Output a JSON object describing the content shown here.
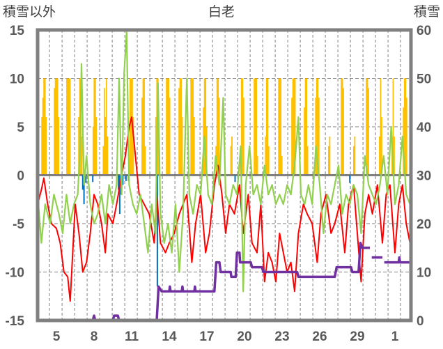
{
  "chart_data": {
    "type": "line",
    "title": "白老",
    "left_axis_title": "積雪以外",
    "right_axis_title": "積雪",
    "ylim_left": [
      -15,
      15
    ],
    "ylim_right": [
      0,
      60
    ],
    "xlim_day": [
      3.5,
      33.3
    ],
    "left_ticks": [
      "15",
      "10",
      "5",
      "0",
      "-5",
      "-10",
      "-15"
    ],
    "left_tick_values": [
      15,
      10,
      5,
      0,
      -5,
      -10,
      -15
    ],
    "right_ticks": [
      "60",
      "50",
      "40",
      "30",
      "20",
      "10",
      "0"
    ],
    "right_tick_values": [
      60,
      50,
      40,
      30,
      20,
      10,
      0
    ],
    "x_ticks": [
      "5",
      "8",
      "11",
      "14",
      "17",
      "20",
      "23",
      "26",
      "29",
      "1"
    ],
    "x_tick_days": [
      5,
      8,
      11,
      14,
      17,
      20,
      23,
      26,
      29,
      32
    ],
    "grid": true,
    "colors": {
      "sunshine": "#FFC000",
      "precip": "#0070C0",
      "temperature": "#FF0000",
      "green_series": "#92D050",
      "snow_depth": "#7030A0",
      "frame": "#808080"
    },
    "sunshine_bars": [
      [
        4.0,
        [
          6,
          8,
          10,
          10,
          6
        ]
      ],
      [
        5.0,
        [
          9,
          10,
          10,
          10,
          6
        ]
      ],
      [
        5.95,
        [
          10,
          10,
          10,
          10
        ]
      ],
      [
        6.9,
        [
          6,
          10,
          10,
          4
        ]
      ],
      [
        8.05,
        [
          5,
          10,
          10,
          6
        ]
      ],
      [
        8.9,
        [
          3,
          9,
          6,
          10,
          4
        ]
      ],
      [
        11.0,
        [
          10,
          10,
          10,
          6
        ]
      ],
      [
        11.95,
        [
          8,
          10,
          10,
          3
        ]
      ],
      [
        13.05,
        [
          6,
          10,
          10,
          4
        ]
      ],
      [
        13.9,
        [
          10,
          10,
          10,
          8
        ]
      ],
      [
        14.9,
        [
          9,
          10,
          10,
          6
        ]
      ],
      [
        15.85,
        [
          10,
          10,
          10,
          6
        ]
      ],
      [
        16.85,
        [
          7,
          10,
          10,
          5
        ]
      ],
      [
        17.85,
        [
          3,
          10,
          10,
          8
        ]
      ],
      [
        18.95,
        [
          3,
          4
        ]
      ],
      [
        19.8,
        [
          3,
          10,
          10,
          8
        ]
      ],
      [
        20.9,
        [
          10,
          10,
          10,
          2
        ]
      ],
      [
        21.8,
        [
          4,
          10,
          10,
          3
        ]
      ],
      [
        22.85,
        [
          10,
          10,
          10,
          2
        ]
      ],
      [
        23.9,
        [
          8,
          10,
          10,
          10
        ]
      ],
      [
        24.9,
        [
          7,
          10,
          10,
          3
        ]
      ],
      [
        25.8,
        [
          8,
          10,
          10,
          8
        ]
      ],
      [
        26.75,
        [
          3,
          4
        ]
      ],
      [
        27.8,
        [
          10,
          10,
          9
        ]
      ],
      [
        28.75,
        [
          3,
          4
        ]
      ],
      [
        29.8,
        [
          10,
          10,
          9
        ]
      ],
      [
        30.85,
        [
          4,
          10,
          6
        ]
      ],
      [
        31.85,
        [
          3,
          10,
          4
        ]
      ],
      [
        32.8,
        [
          7,
          10,
          10,
          8
        ]
      ]
    ],
    "precip_bars": [
      [
        7.1,
        -1.5
      ],
      [
        7.2,
        -3
      ],
      [
        7.35,
        -0.8
      ],
      [
        7.9,
        -0.7
      ],
      [
        9.95,
        -1.5
      ],
      [
        10.05,
        -4
      ],
      [
        10.15,
        -2
      ],
      [
        10.3,
        -1
      ],
      [
        10.55,
        -0.6
      ],
      [
        10.75,
        -0.6
      ],
      [
        13.05,
        -11.5
      ],
      [
        19.25,
        -0.7
      ],
      [
        28.4,
        -0.8
      ]
    ],
    "temperature": [
      [
        3.5,
        -3
      ],
      [
        3.8,
        -1.5
      ],
      [
        4.0,
        -0.3
      ],
      [
        4.3,
        -3
      ],
      [
        4.6,
        -5
      ],
      [
        5.0,
        -5.5
      ],
      [
        5.3,
        -7
      ],
      [
        5.6,
        -10
      ],
      [
        5.9,
        -10.5
      ],
      [
        6.1,
        -13
      ],
      [
        6.3,
        -8
      ],
      [
        6.5,
        -3
      ],
      [
        6.8,
        -6
      ],
      [
        7.1,
        -10
      ],
      [
        7.4,
        -9
      ],
      [
        7.7,
        -6
      ],
      [
        8.0,
        -2
      ],
      [
        8.3,
        -3
      ],
      [
        8.6,
        -5
      ],
      [
        8.9,
        -8
      ],
      [
        9.1,
        -4
      ],
      [
        9.5,
        -5
      ],
      [
        9.8,
        -3
      ],
      [
        10.2,
        0
      ],
      [
        10.5,
        2
      ],
      [
        10.8,
        5
      ],
      [
        11.0,
        6
      ],
      [
        11.3,
        2
      ],
      [
        11.6,
        -2
      ],
      [
        12.0,
        -3
      ],
      [
        12.4,
        -4
      ],
      [
        12.8,
        -7
      ],
      [
        13.0,
        -2
      ],
      [
        13.3,
        -7
      ],
      [
        13.7,
        -8
      ],
      [
        14.0,
        -7
      ],
      [
        14.4,
        -6
      ],
      [
        14.8,
        -4
      ],
      [
        15.1,
        -3
      ],
      [
        15.4,
        -2
      ],
      [
        15.8,
        -9
      ],
      [
        16.1,
        -5
      ],
      [
        16.5,
        -2
      ],
      [
        16.9,
        -8
      ],
      [
        17.2,
        -6
      ],
      [
        17.6,
        -1
      ],
      [
        17.9,
        1
      ],
      [
        18.2,
        -2
      ],
      [
        18.5,
        -6
      ],
      [
        18.8,
        -3
      ],
      [
        19.2,
        -4
      ],
      [
        19.6,
        -1
      ],
      [
        19.9,
        -6
      ],
      [
        20.3,
        -2
      ],
      [
        20.6,
        -7
      ],
      [
        21.0,
        -8
      ],
      [
        21.3,
        -3
      ],
      [
        21.6,
        -11
      ],
      [
        21.9,
        -8
      ],
      [
        22.2,
        -9
      ],
      [
        22.5,
        -11
      ],
      [
        22.8,
        -6
      ],
      [
        23.1,
        -8
      ],
      [
        23.4,
        -10
      ],
      [
        23.7,
        -9
      ],
      [
        24.0,
        -12
      ],
      [
        24.3,
        -6
      ],
      [
        24.7,
        -3
      ],
      [
        25.0,
        -4
      ],
      [
        25.4,
        -5
      ],
      [
        25.8,
        -9
      ],
      [
        26.1,
        -4
      ],
      [
        26.5,
        -2
      ],
      [
        26.9,
        -6
      ],
      [
        27.2,
        -5
      ],
      [
        27.6,
        -3
      ],
      [
        28.0,
        -8
      ],
      [
        28.3,
        -3
      ],
      [
        28.7,
        -1
      ],
      [
        29.0,
        -6
      ],
      [
        29.3,
        -11
      ],
      [
        29.6,
        -4
      ],
      [
        29.9,
        -2
      ],
      [
        30.2,
        -4
      ],
      [
        30.6,
        -1
      ],
      [
        31.0,
        -7
      ],
      [
        31.3,
        -2
      ],
      [
        31.6,
        -1
      ],
      [
        32.0,
        -8
      ],
      [
        32.3,
        -3
      ],
      [
        32.6,
        -1
      ],
      [
        32.9,
        -5
      ],
      [
        33.2,
        -7
      ]
    ],
    "green_series": [
      [
        3.5,
        -2
      ],
      [
        3.8,
        -7
      ],
      [
        4.1,
        -3
      ],
      [
        4.5,
        -5
      ],
      [
        4.8,
        -2
      ],
      [
        5.2,
        -4
      ],
      [
        5.5,
        -6
      ],
      [
        5.8,
        -2
      ],
      [
        6.1,
        -5
      ],
      [
        6.4,
        -3
      ],
      [
        6.7,
        -2
      ],
      [
        6.9,
        3
      ],
      [
        7.0,
        11.5
      ],
      [
        7.2,
        -1
      ],
      [
        7.4,
        2
      ],
      [
        7.7,
        -3
      ],
      [
        8.0,
        -5
      ],
      [
        8.3,
        -4
      ],
      [
        8.6,
        -2
      ],
      [
        8.9,
        -5
      ],
      [
        9.2,
        -1
      ],
      [
        9.5,
        -3
      ],
      [
        9.8,
        -1
      ],
      [
        10.0,
        10
      ],
      [
        10.2,
        -2
      ],
      [
        10.4,
        10.5
      ],
      [
        10.6,
        14.8
      ],
      [
        10.8,
        -1
      ],
      [
        11.1,
        -3
      ],
      [
        11.4,
        -4
      ],
      [
        11.7,
        -2
      ],
      [
        12.0,
        -5
      ],
      [
        12.3,
        -8
      ],
      [
        12.6,
        -3
      ],
      [
        12.9,
        -6
      ],
      [
        13.1,
        9.5
      ],
      [
        13.3,
        -4
      ],
      [
        13.6,
        -7
      ],
      [
        13.9,
        -5
      ],
      [
        14.2,
        -8
      ],
      [
        14.5,
        -3
      ],
      [
        14.8,
        -10
      ],
      [
        15.1,
        -4
      ],
      [
        15.4,
        10
      ],
      [
        15.6,
        -2
      ],
      [
        15.9,
        -4
      ],
      [
        16.2,
        -1
      ],
      [
        16.5,
        -2
      ],
      [
        16.8,
        4
      ],
      [
        17.1,
        -2
      ],
      [
        17.4,
        -3
      ],
      [
        17.7,
        2
      ],
      [
        18.0,
        -1
      ],
      [
        18.3,
        8
      ],
      [
        18.5,
        -2
      ],
      [
        18.8,
        -3
      ],
      [
        19.1,
        -1
      ],
      [
        19.4,
        -2
      ],
      [
        19.7,
        3
      ],
      [
        19.9,
        -12
      ],
      [
        20.1,
        -1
      ],
      [
        20.4,
        3
      ],
      [
        20.7,
        -2
      ],
      [
        21.0,
        -1
      ],
      [
        21.3,
        -3
      ],
      [
        21.6,
        1
      ],
      [
        21.9,
        -2
      ],
      [
        22.2,
        -1
      ],
      [
        22.5,
        -3
      ],
      [
        22.8,
        -2
      ],
      [
        23.1,
        -3
      ],
      [
        23.4,
        -1
      ],
      [
        23.7,
        -2
      ],
      [
        24.0,
        1
      ],
      [
        24.3,
        6
      ],
      [
        24.5,
        -2
      ],
      [
        24.8,
        -3
      ],
      [
        25.1,
        -1
      ],
      [
        25.4,
        -3
      ],
      [
        25.7,
        3
      ],
      [
        26.0,
        -1
      ],
      [
        26.3,
        -6
      ],
      [
        26.6,
        -2
      ],
      [
        26.9,
        -3
      ],
      [
        27.2,
        -1
      ],
      [
        27.5,
        1
      ],
      [
        27.8,
        -4
      ],
      [
        28.1,
        -2
      ],
      [
        28.4,
        -3
      ],
      [
        28.7,
        -1
      ],
      [
        29.0,
        -2
      ],
      [
        29.3,
        -6
      ],
      [
        29.6,
        2
      ],
      [
        29.9,
        -1
      ],
      [
        30.2,
        -2
      ],
      [
        30.5,
        -3
      ],
      [
        30.8,
        -1
      ],
      [
        31.1,
        2
      ],
      [
        31.4,
        -2
      ],
      [
        31.7,
        5
      ],
      [
        32.0,
        -3
      ],
      [
        32.3,
        -1
      ],
      [
        32.6,
        4
      ],
      [
        32.9,
        -2
      ],
      [
        33.2,
        -3
      ]
    ],
    "snow_depth_segments": [
      [
        [
          3.5,
          0
        ],
        [
          7.9,
          0
        ],
        [
          8.0,
          1
        ],
        [
          8.1,
          0
        ],
        [
          9.5,
          0
        ],
        [
          9.6,
          1
        ],
        [
          9.9,
          1
        ],
        [
          10.0,
          0
        ],
        [
          10.1,
          0
        ]
      ],
      [
        [
          10.9,
          0
        ],
        [
          13.0,
          0
        ],
        [
          13.15,
          7
        ],
        [
          13.4,
          6
        ],
        [
          14.0,
          6
        ],
        [
          14.05,
          7
        ],
        [
          14.1,
          6
        ],
        [
          15.0,
          6
        ],
        [
          15.05,
          7
        ],
        [
          15.1,
          6
        ],
        [
          16.0,
          6
        ],
        [
          16.05,
          7
        ],
        [
          16.1,
          6
        ],
        [
          17.6,
          6
        ],
        [
          17.75,
          12
        ],
        [
          18.0,
          12
        ],
        [
          18.1,
          10
        ],
        [
          18.9,
          10
        ],
        [
          18.95,
          9
        ],
        [
          19.3,
          9
        ],
        [
          19.4,
          14
        ],
        [
          19.6,
          14
        ],
        [
          19.65,
          12
        ],
        [
          20.3,
          12
        ],
        [
          20.5,
          12
        ],
        [
          20.6,
          11
        ],
        [
          21.4,
          11
        ],
        [
          21.5,
          10
        ],
        [
          24.2,
          10
        ],
        [
          24.3,
          9
        ],
        [
          27.2,
          9
        ],
        [
          27.35,
          11
        ],
        [
          28.5,
          11
        ],
        [
          28.6,
          10
        ],
        [
          29.1,
          10
        ],
        [
          29.25,
          16
        ],
        [
          29.4,
          15
        ],
        [
          30.0,
          15
        ]
      ],
      [
        [
          30.15,
          13
        ],
        [
          31.0,
          13
        ]
      ],
      [
        [
          31.15,
          12
        ],
        [
          32.3,
          12
        ],
        [
          32.35,
          13
        ],
        [
          32.4,
          12
        ],
        [
          33.3,
          12
        ]
      ]
    ]
  }
}
